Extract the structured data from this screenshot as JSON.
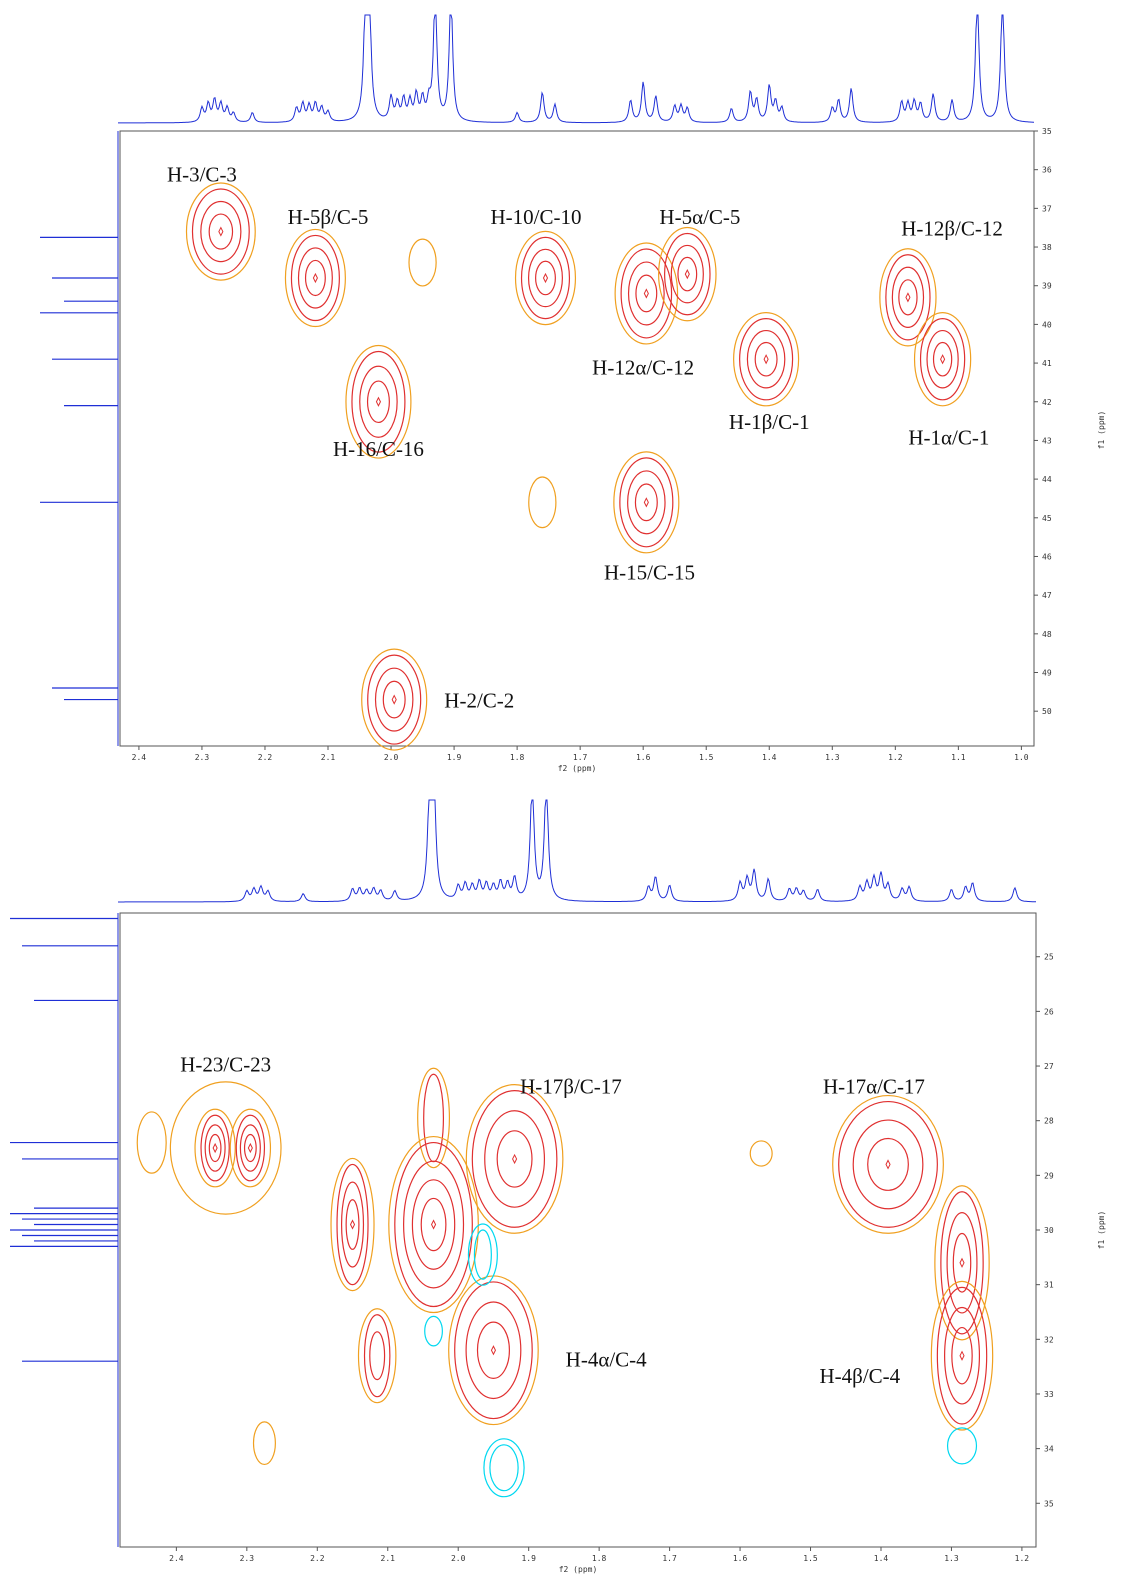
{
  "page": {
    "title": ""
  },
  "colors": {
    "spectrum": "#1f2fd6",
    "contour_outer": "#f0a020",
    "contour_inner": "#e03030",
    "contour_negative": "#00d8f0",
    "frame": "#555555"
  },
  "chart_data": [
    {
      "type": "contour",
      "xlabel": "f2 (ppm)",
      "ylabel": "f1 (ppm)",
      "xlim": [
        2.43,
        0.98
      ],
      "ylim": [
        35,
        50.9
      ],
      "x_ticks": [
        "2.4",
        "2.3",
        "2.2",
        "2.1",
        "2.0",
        "1.9",
        "1.8",
        "1.7",
        "1.6",
        "1.5",
        "1.4",
        "1.3",
        "1.2",
        "1.1",
        "1.0"
      ],
      "y_ticks": [
        "35",
        "36",
        "37",
        "38",
        "39",
        "40",
        "41",
        "42",
        "43",
        "44",
        "45",
        "46",
        "47",
        "48",
        "49",
        "50"
      ],
      "projection_f1_ppm": [
        37.75,
        38.8,
        39.4,
        39.7,
        40.9,
        42.1,
        44.6,
        49.4,
        49.7
      ],
      "peaks": [
        {
          "label": "H-3/C-3",
          "x": 2.27,
          "y": 37.6,
          "rx": 0.045,
          "ry": 1.1,
          "levels": 3,
          "neg": false
        },
        {
          "label": "H-5β/C-5",
          "x": 2.12,
          "y": 38.8,
          "rx": 0.038,
          "ry": 1.1,
          "levels": 3,
          "neg": false
        },
        {
          "label": "",
          "x": 1.95,
          "y": 38.4,
          "rx": 0.012,
          "ry": 0.45,
          "levels": 0,
          "neg": false
        },
        {
          "label": "H-10/C-10",
          "x": 1.755,
          "y": 38.8,
          "rx": 0.038,
          "ry": 1.05,
          "levels": 3,
          "neg": false
        },
        {
          "label": "H-12α/C-12",
          "x": 1.595,
          "y": 39.2,
          "rx": 0.04,
          "ry": 1.15,
          "levels": 3,
          "neg": false
        },
        {
          "label": "H-5α/C-5",
          "x": 1.53,
          "y": 38.7,
          "rx": 0.036,
          "ry": 1.05,
          "levels": 3,
          "neg": false
        },
        {
          "label": "H-12β/C-12",
          "x": 1.18,
          "y": 39.3,
          "rx": 0.035,
          "ry": 1.1,
          "levels": 3,
          "neg": false
        },
        {
          "label": "H-1β/C-1",
          "x": 1.405,
          "y": 40.9,
          "rx": 0.042,
          "ry": 1.05,
          "levels": 3,
          "neg": false
        },
        {
          "label": "H-1α/C-1",
          "x": 1.125,
          "y": 40.9,
          "rx": 0.035,
          "ry": 1.05,
          "levels": 3,
          "neg": false
        },
        {
          "label": "H-16/C-16",
          "x": 2.02,
          "y": 42.0,
          "rx": 0.042,
          "ry": 1.3,
          "levels": 3,
          "neg": false
        },
        {
          "label": "",
          "x": 1.76,
          "y": 44.6,
          "rx": 0.012,
          "ry": 0.5,
          "levels": 0,
          "neg": false
        },
        {
          "label": "H-15/C-15",
          "x": 1.595,
          "y": 44.6,
          "rx": 0.042,
          "ry": 1.15,
          "levels": 3,
          "neg": false
        },
        {
          "label": "H-2/C-2",
          "x": 1.995,
          "y": 49.7,
          "rx": 0.042,
          "ry": 1.15,
          "levels": 3,
          "neg": false
        }
      ]
    },
    {
      "type": "contour",
      "xlabel": "f2 (ppm)",
      "ylabel": "f1 (ppm)",
      "xlim": [
        2.48,
        1.18
      ],
      "ylim": [
        24.2,
        35.8
      ],
      "x_ticks": [
        "2.4",
        "2.3",
        "2.2",
        "2.1",
        "2.0",
        "1.9",
        "1.8",
        "1.7",
        "1.6",
        "1.5",
        "1.4",
        "1.3",
        "1.2"
      ],
      "y_ticks": [
        "25",
        "26",
        "27",
        "28",
        "29",
        "30",
        "31",
        "32",
        "33",
        "34",
        "35"
      ],
      "projection_f1_ppm": [
        24.3,
        24.8,
        25.8,
        28.4,
        28.7,
        29.6,
        29.7,
        29.8,
        29.9,
        30.0,
        30.1,
        30.2,
        30.3,
        32.4
      ],
      "peaks": [
        {
          "label": "",
          "x": 2.33,
          "y": 28.5,
          "rx": 0.07,
          "ry": 1.1,
          "levels": 0,
          "neg": false
        },
        {
          "label": "",
          "x": 2.435,
          "y": 28.4,
          "rx": 0.012,
          "ry": 0.45,
          "levels": 0,
          "neg": false
        },
        {
          "label": "",
          "x": 2.345,
          "y": 28.5,
          "rx": 0.02,
          "ry": 0.6,
          "levels": 3,
          "neg": false
        },
        {
          "label": "",
          "x": 2.295,
          "y": 28.5,
          "rx": 0.02,
          "ry": 0.6,
          "levels": 3,
          "neg": false
        },
        {
          "label": "",
          "x": 2.15,
          "y": 29.9,
          "rx": 0.022,
          "ry": 1.1,
          "levels": 3,
          "neg": false
        },
        {
          "label": "",
          "x": 2.035,
          "y": 27.95,
          "rx": 0.014,
          "ry": 0.8,
          "levels": 1,
          "neg": false
        },
        {
          "label": "",
          "x": 2.035,
          "y": 29.9,
          "rx": 0.055,
          "ry": 1.5,
          "levels": 4,
          "neg": false
        },
        {
          "label": "",
          "x": 1.92,
          "y": 28.7,
          "rx": 0.06,
          "ry": 1.25,
          "levels": 3,
          "neg": false
        },
        {
          "label": "",
          "x": 1.95,
          "y": 32.2,
          "rx": 0.055,
          "ry": 1.25,
          "levels": 3,
          "neg": false
        },
        {
          "label": "",
          "x": 2.115,
          "y": 32.3,
          "rx": 0.018,
          "ry": 0.75,
          "levels": 2,
          "neg": false
        },
        {
          "label": "",
          "x": 2.275,
          "y": 33.9,
          "rx": 0.007,
          "ry": 0.28,
          "levels": 0,
          "neg": false
        },
        {
          "label": "",
          "x": 1.57,
          "y": 28.6,
          "rx": 0.007,
          "ry": 0.12,
          "levels": 0,
          "neg": false
        },
        {
          "label": "",
          "x": 1.39,
          "y": 28.8,
          "rx": 0.07,
          "ry": 1.15,
          "levels": 3,
          "neg": false
        },
        {
          "label": "",
          "x": 1.285,
          "y": 30.6,
          "rx": 0.03,
          "ry": 1.3,
          "levels": 3,
          "neg": false
        },
        {
          "label": "",
          "x": 1.285,
          "y": 32.3,
          "rx": 0.035,
          "ry": 1.25,
          "levels": 3,
          "neg": false
        },
        {
          "label": "",
          "x": 1.965,
          "y": 30.45,
          "rx": 0.012,
          "ry": 0.45,
          "levels": 1,
          "neg": true
        },
        {
          "label": "",
          "x": 2.035,
          "y": 31.85,
          "rx": 0.004,
          "ry": 0.16,
          "levels": 0,
          "neg": true
        },
        {
          "label": "",
          "x": 1.935,
          "y": 34.35,
          "rx": 0.02,
          "ry": 0.42,
          "levels": 1,
          "neg": true
        },
        {
          "label": "",
          "x": 1.285,
          "y": 33.95,
          "rx": 0.012,
          "ry": 0.22,
          "levels": 0,
          "neg": true
        }
      ],
      "labels": [
        {
          "label": "H-23/C-23",
          "x": 2.33,
          "y": 27.1
        },
        {
          "label": "H-17β/C-17",
          "x": 1.84,
          "y": 27.5
        },
        {
          "label": "H-17α/C-17",
          "x": 1.41,
          "y": 27.5
        },
        {
          "label": "H-4α/C-4",
          "x": 1.79,
          "y": 32.5
        },
        {
          "label": "H-4β/C-4",
          "x": 1.43,
          "y": 32.8
        }
      ]
    }
  ]
}
